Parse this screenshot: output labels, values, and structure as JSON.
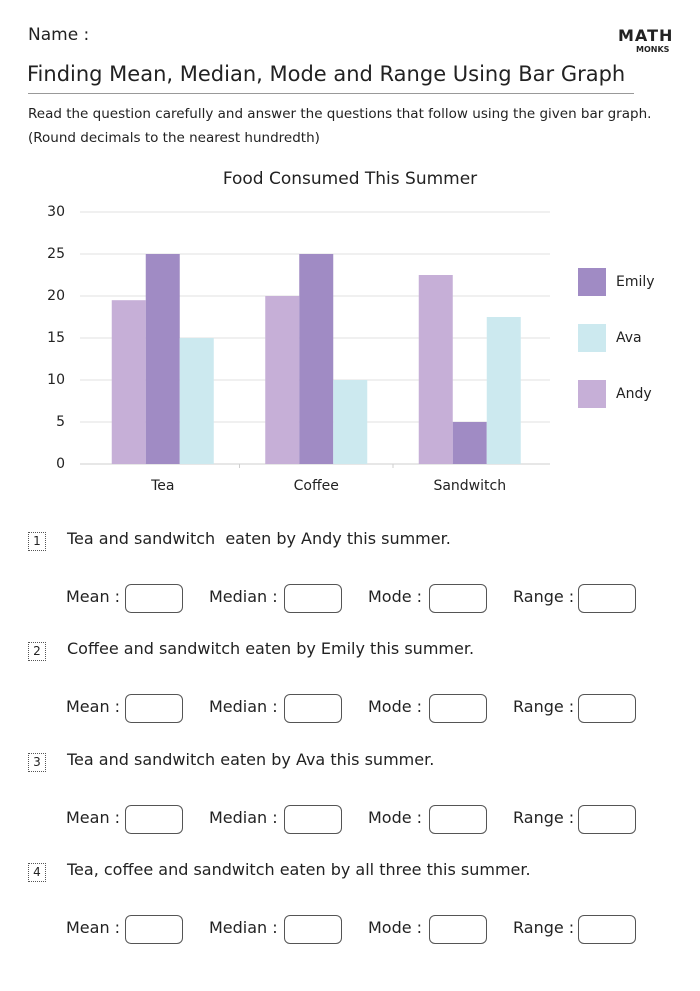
{
  "header": {
    "name_label": "Name :",
    "logo_top": "MATH",
    "logo_bottom": "MONKS",
    "title": "Finding Mean, Median, Mode and Range Using Bar Graph",
    "instructions": [
      "Read the question carefully and answer the questions that follow using the given bar graph.",
      "(Round decimals to the nearest hundredth)"
    ]
  },
  "chart_data": {
    "type": "bar",
    "title": "Food Consumed This Summer",
    "categories": [
      "Tea",
      "Coffee",
      "Sandwitch"
    ],
    "series": [
      {
        "name": "Andy",
        "color": "#c6afd7",
        "values": [
          19.5,
          20,
          22.5
        ]
      },
      {
        "name": "Emily",
        "color": "#a08bc4",
        "values": [
          25,
          25,
          5
        ]
      },
      {
        "name": "Ava",
        "color": "#cce9ef",
        "values": [
          15,
          10,
          17.5
        ]
      }
    ],
    "ylim": [
      0,
      30
    ],
    "yticks": [
      0,
      5,
      10,
      15,
      20,
      25,
      30
    ],
    "grid": true
  },
  "answer_fields": [
    "Mean :",
    "Median :",
    "Mode :",
    "Range :"
  ],
  "questions": [
    {
      "number": "1",
      "text": "Tea and sandwitch  eaten by Andy this summer."
    },
    {
      "number": "2",
      "text": "Coffee and sandwitch eaten by Emily this summer."
    },
    {
      "number": "3",
      "text": "Tea and sandwitch eaten by Ava this summer."
    },
    {
      "number": "4",
      "text": "Tea, coffee and sandwitch eaten by all three this summer."
    }
  ]
}
